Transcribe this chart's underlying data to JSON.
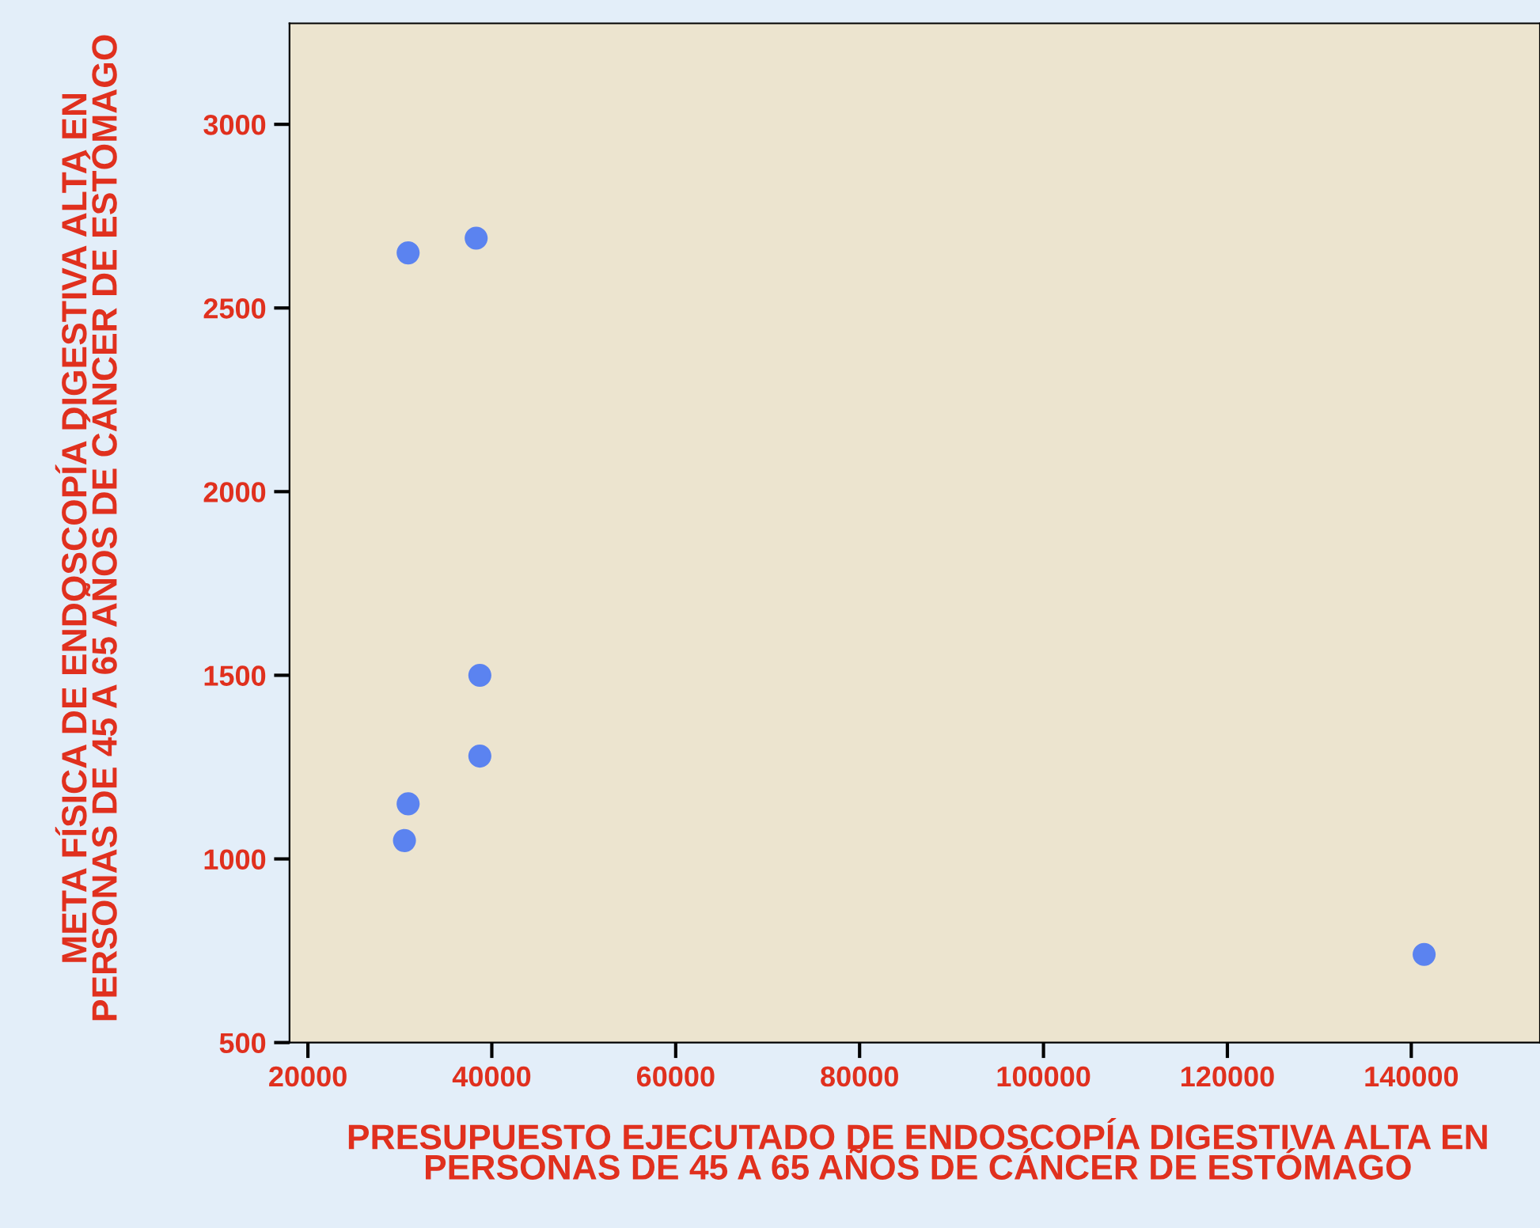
{
  "chart_data": {
    "type": "scatter",
    "xlabel": "PRESUPUESTO EJECUTADO DE ENDOSCOPÍA DIGESTIVA ALTA EN PERSONAS DE 45 A 65 AÑOS DE CÁNCER DE ESTÓMAGO",
    "ylabel": "META FÍSICA DE ENDOSCOPÍA DIGESTIVA ALTA EN PERSONAS DE 45 A 65 AÑOS DE CÁNCER DE ESTÓMAGO",
    "x": [
      30900,
      38300,
      38700,
      38700,
      30900,
      30500,
      141400
    ],
    "values": [
      2650,
      2690,
      1500,
      1280,
      1150,
      1050,
      740
    ],
    "color": "#5b83f0",
    "marker": "circle",
    "xlim": [
      18000,
      154000
    ],
    "xticks": [
      20000,
      40000,
      60000,
      80000,
      100000,
      120000,
      140000
    ],
    "ylim": [
      500,
      3275
    ],
    "yticks": [
      500,
      1000,
      1500,
      2000,
      2500,
      3000
    ],
    "grid": false
  }
}
